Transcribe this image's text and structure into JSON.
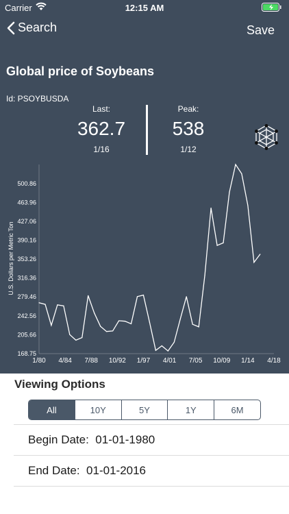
{
  "status_bar": {
    "carrier": "Carrier",
    "time": "12:15 AM"
  },
  "nav": {
    "back_label": "Search",
    "save_label": "Save"
  },
  "header": {
    "title": "Global price of Soybeans",
    "series_id": "Id: PSOYBUSDA",
    "last": {
      "label": "Last:",
      "value": "362.7",
      "date": "1/16"
    },
    "peak": {
      "label": "Peak:",
      "value": "538",
      "date": "1/12"
    }
  },
  "chart_data": {
    "type": "line",
    "ylabel": "U.S. Dollars per Metric Ton",
    "y_ticks": [
      "168.75",
      "205.66",
      "242.56",
      "279.46",
      "316.36",
      "353.26",
      "390.16",
      "427.06",
      "463.96",
      "500.86"
    ],
    "x_ticks": [
      "1/80",
      "4/84",
      "7/88",
      "10/92",
      "1/97",
      "4/01",
      "7/05",
      "10/09",
      "1/14",
      "4/18"
    ],
    "ylim": [
      168.75,
      538
    ],
    "xlim": [
      1980,
      2018.25
    ],
    "x": [
      1980,
      1981,
      1982,
      1983,
      1984,
      1985,
      1986,
      1987,
      1988,
      1989,
      1990,
      1991,
      1992,
      1993,
      1994,
      1995,
      1996,
      1997,
      1998,
      1999,
      2000,
      2001,
      2002,
      2003,
      2004,
      2005,
      2006,
      2007,
      2008,
      2009,
      2010,
      2011,
      2012,
      2013,
      2014,
      2015,
      2016
    ],
    "values": [
      268,
      265,
      224,
      264,
      262,
      206,
      195,
      200,
      282,
      248,
      222,
      212,
      213,
      233,
      232,
      227,
      280,
      283,
      230,
      175,
      184,
      174,
      191,
      236,
      280,
      226,
      221,
      322,
      453,
      380,
      385,
      484,
      538,
      520,
      458,
      347,
      362.7
    ],
    "grid": false
  },
  "viewing_options": {
    "title": "Viewing Options",
    "ranges": [
      "All",
      "10Y",
      "5Y",
      "1Y",
      "6M"
    ],
    "selected": "All",
    "begin_date": "Begin Date:  01-01-1980",
    "end_date": "End Date:  01-01-2016"
  },
  "colors": {
    "header_bg": "#3f4c5c",
    "accent": "#4a5868",
    "battery": "#4cd964"
  },
  "icons": {
    "back": "chevron-left-icon",
    "wifi": "wifi-icon",
    "battery": "battery-icon",
    "logo": "cube-logo-icon"
  }
}
